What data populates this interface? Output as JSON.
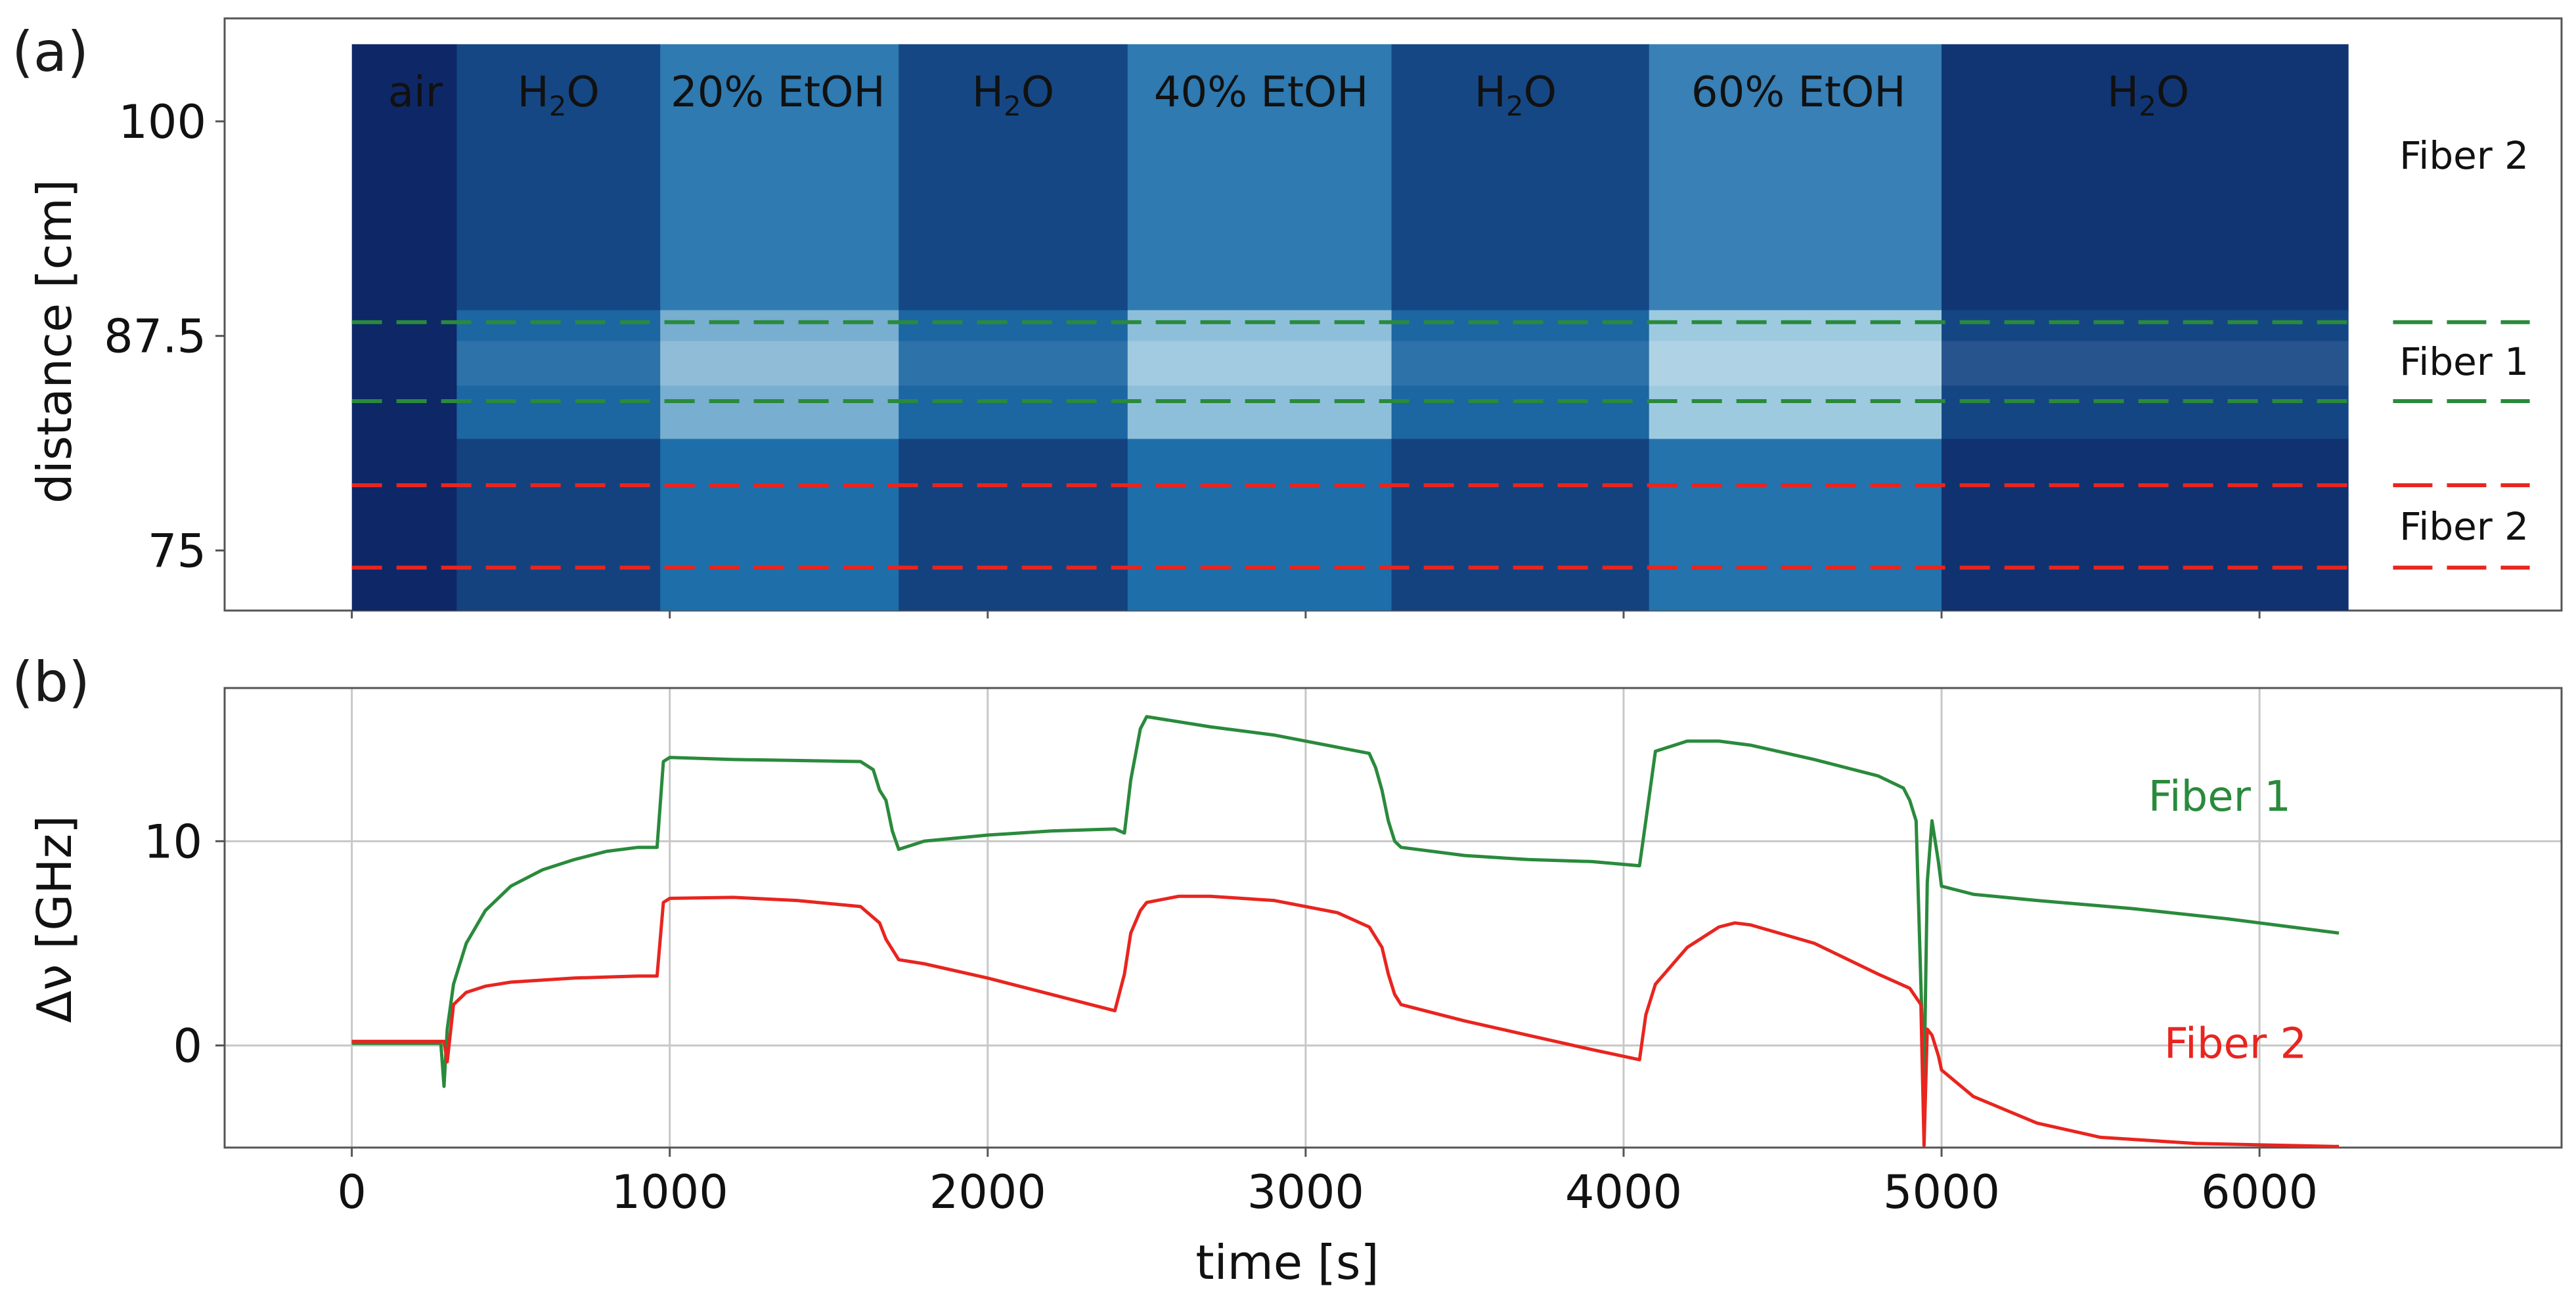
{
  "colors": {
    "green": "#2a8a3c",
    "red": "#e8251f",
    "axis": "#555555",
    "grid": "#c8c8c8",
    "heat_dark": "#0c1f5e",
    "heat_mid": "#1e5d9c",
    "heat_light": "#b7dbe8"
  },
  "chart_data": [
    {
      "type": "heatmap",
      "panel_label": "(a)",
      "ylabel": "distance [cm]",
      "yticks": [
        75,
        87.5,
        100
      ],
      "ylim": [
        71.5,
        106
      ],
      "xlim": [
        -400,
        6950
      ],
      "xdata_range": [
        0,
        6280
      ],
      "segments": [
        {
          "label": "air",
          "start": 0,
          "end": 330,
          "base": "H2O"
        },
        {
          "label": "H2O",
          "start": 330,
          "end": 970
        },
        {
          "label": "20% EtOH",
          "start": 970,
          "end": 1720
        },
        {
          "label": "H2O",
          "start": 1720,
          "end": 2440
        },
        {
          "label": "40% EtOH",
          "start": 2440,
          "end": 3270
        },
        {
          "label": "H2O",
          "start": 3270,
          "end": 4080
        },
        {
          "label": "60% EtOH",
          "start": 4080,
          "end": 5000
        },
        {
          "label": "H2O",
          "start": 5000,
          "end": 6280
        }
      ],
      "segment_labels": [
        {
          "text": "air",
          "x": 200
        },
        {
          "text": "H2O",
          "x": 650
        },
        {
          "text": "20% EtOH",
          "x": 1340
        },
        {
          "text": "H2O",
          "x": 2080
        },
        {
          "text": "40% EtOH",
          "x": 2860
        },
        {
          "text": "H2O",
          "x": 3660
        },
        {
          "text": "60% EtOH",
          "x": 4550
        },
        {
          "text": "H2O",
          "x": 5650
        }
      ],
      "bands": [
        {
          "name": "Fiber 2 (upper)",
          "ymin": 89,
          "ymax": 104.5
        },
        {
          "name": "Fiber 1",
          "ymin": 81.5,
          "ymax": 89
        },
        {
          "name": "Fiber 2 (lower)",
          "ymin": 71.5,
          "ymax": 81.5
        }
      ],
      "dashed_lines": [
        {
          "y": 88.3,
          "color": "green"
        },
        {
          "y": 83.7,
          "color": "green"
        },
        {
          "y": 78.8,
          "color": "red"
        },
        {
          "y": 74.0,
          "color": "red"
        }
      ],
      "fiber_labels": [
        {
          "text": "Fiber 2",
          "y": 98
        },
        {
          "text": "Fiber 1",
          "y": 86
        },
        {
          "text": "Fiber 2",
          "y": 76.4
        }
      ]
    },
    {
      "type": "line",
      "panel_label": "(b)",
      "xlabel": "time [s]",
      "ylabel": "Δν [GHz]",
      "xlim": [
        -400,
        6950
      ],
      "ylim": [
        -5,
        17.5
      ],
      "xticks": [
        0,
        1000,
        2000,
        3000,
        4000,
        5000,
        6000
      ],
      "yticks": [
        0,
        10
      ],
      "grid": true,
      "series": [
        {
          "name": "Fiber 1",
          "color": "green",
          "label_pos": {
            "x": 5650,
            "y": 12.2
          },
          "x": [
            0,
            280,
            290,
            300,
            320,
            360,
            420,
            500,
            600,
            700,
            800,
            900,
            960,
            980,
            1000,
            1200,
            1400,
            1600,
            1640,
            1660,
            1680,
            1700,
            1720,
            1800,
            2000,
            2200,
            2400,
            2430,
            2450,
            2480,
            2500,
            2700,
            2900,
            3100,
            3200,
            3220,
            3240,
            3260,
            3280,
            3300,
            3500,
            3700,
            3900,
            4050,
            4070,
            4100,
            4200,
            4300,
            4400,
            4600,
            4800,
            4880,
            4900,
            4920,
            4935,
            4945,
            4955,
            4970,
            4990,
            5000,
            5050,
            5100,
            5300,
            5600,
            5900,
            6100,
            6250
          ],
          "y": [
            0.1,
            0.1,
            -2.0,
            0.8,
            3.0,
            5.0,
            6.6,
            7.8,
            8.6,
            9.1,
            9.5,
            9.7,
            9.7,
            13.9,
            14.1,
            14.0,
            13.95,
            13.9,
            13.5,
            12.5,
            12.0,
            10.5,
            9.6,
            10.0,
            10.3,
            10.5,
            10.6,
            10.4,
            13.0,
            15.5,
            16.1,
            15.6,
            15.2,
            14.6,
            14.3,
            13.6,
            12.5,
            11.0,
            10.0,
            9.7,
            9.3,
            9.1,
            9.0,
            8.8,
            11.0,
            14.4,
            14.9,
            14.9,
            14.7,
            14.0,
            13.2,
            12.6,
            12.0,
            11.0,
            3.0,
            -2.0,
            8.0,
            11.0,
            9.0,
            7.8,
            7.6,
            7.4,
            7.1,
            6.7,
            6.2,
            5.8,
            5.5
          ]
        },
        {
          "name": "Fiber 2",
          "color": "red",
          "label_pos": {
            "x": 5700,
            "y": 0.1
          },
          "x": [
            0,
            290,
            300,
            320,
            360,
            420,
            500,
            600,
            700,
            800,
            900,
            960,
            980,
            1000,
            1200,
            1400,
            1600,
            1660,
            1680,
            1700,
            1720,
            1800,
            2000,
            2200,
            2400,
            2430,
            2450,
            2480,
            2500,
            2600,
            2700,
            2900,
            3100,
            3200,
            3240,
            3260,
            3280,
            3300,
            3500,
            3700,
            3900,
            4050,
            4070,
            4100,
            4200,
            4300,
            4350,
            4400,
            4600,
            4800,
            4900,
            4935,
            4945,
            4955,
            4970,
            4990,
            5000,
            5100,
            5300,
            5500,
            5800,
            6100,
            6250
          ],
          "y": [
            0.2,
            0.2,
            -0.8,
            2.0,
            2.6,
            2.9,
            3.1,
            3.2,
            3.3,
            3.35,
            3.4,
            3.4,
            7.0,
            7.2,
            7.25,
            7.1,
            6.8,
            6.0,
            5.2,
            4.7,
            4.2,
            4.0,
            3.3,
            2.5,
            1.7,
            3.5,
            5.5,
            6.6,
            7.0,
            7.3,
            7.3,
            7.1,
            6.5,
            5.8,
            4.8,
            3.5,
            2.5,
            2.0,
            1.2,
            0.5,
            -0.2,
            -0.7,
            1.5,
            3.0,
            4.8,
            5.8,
            6.0,
            5.9,
            5.0,
            3.5,
            2.8,
            2.0,
            -4.9,
            0.8,
            0.5,
            -0.5,
            -1.2,
            -2.5,
            -3.8,
            -4.5,
            -4.8,
            -4.9,
            -4.95
          ]
        }
      ]
    }
  ]
}
